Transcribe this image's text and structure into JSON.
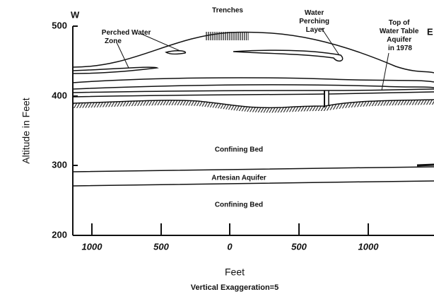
{
  "y_axis": {
    "label": "Altitude in Feet",
    "ticks": [
      "500",
      "400",
      "300",
      "200"
    ]
  },
  "x_axis": {
    "ticks": [
      "1000",
      "500",
      "0",
      "500",
      "1000"
    ],
    "label": "Feet",
    "note": "Vertical Exaggeration=5"
  },
  "ends": {
    "west": "W",
    "east": "E"
  },
  "labels": {
    "trenches": "Trenches",
    "water_perching_layer": [
      "Water",
      "Perching",
      "Layer"
    ],
    "top_of_water_table": [
      "Top of",
      "Water Table",
      "Aquifer",
      "in 1978"
    ],
    "perched_water_zone": [
      "Perched Water",
      "Zone"
    ],
    "upper_confining_bed": "Confining Bed",
    "artesian_aquifer": "Artesian Aquifer",
    "lower_confining_bed": "Confining Bed"
  }
}
